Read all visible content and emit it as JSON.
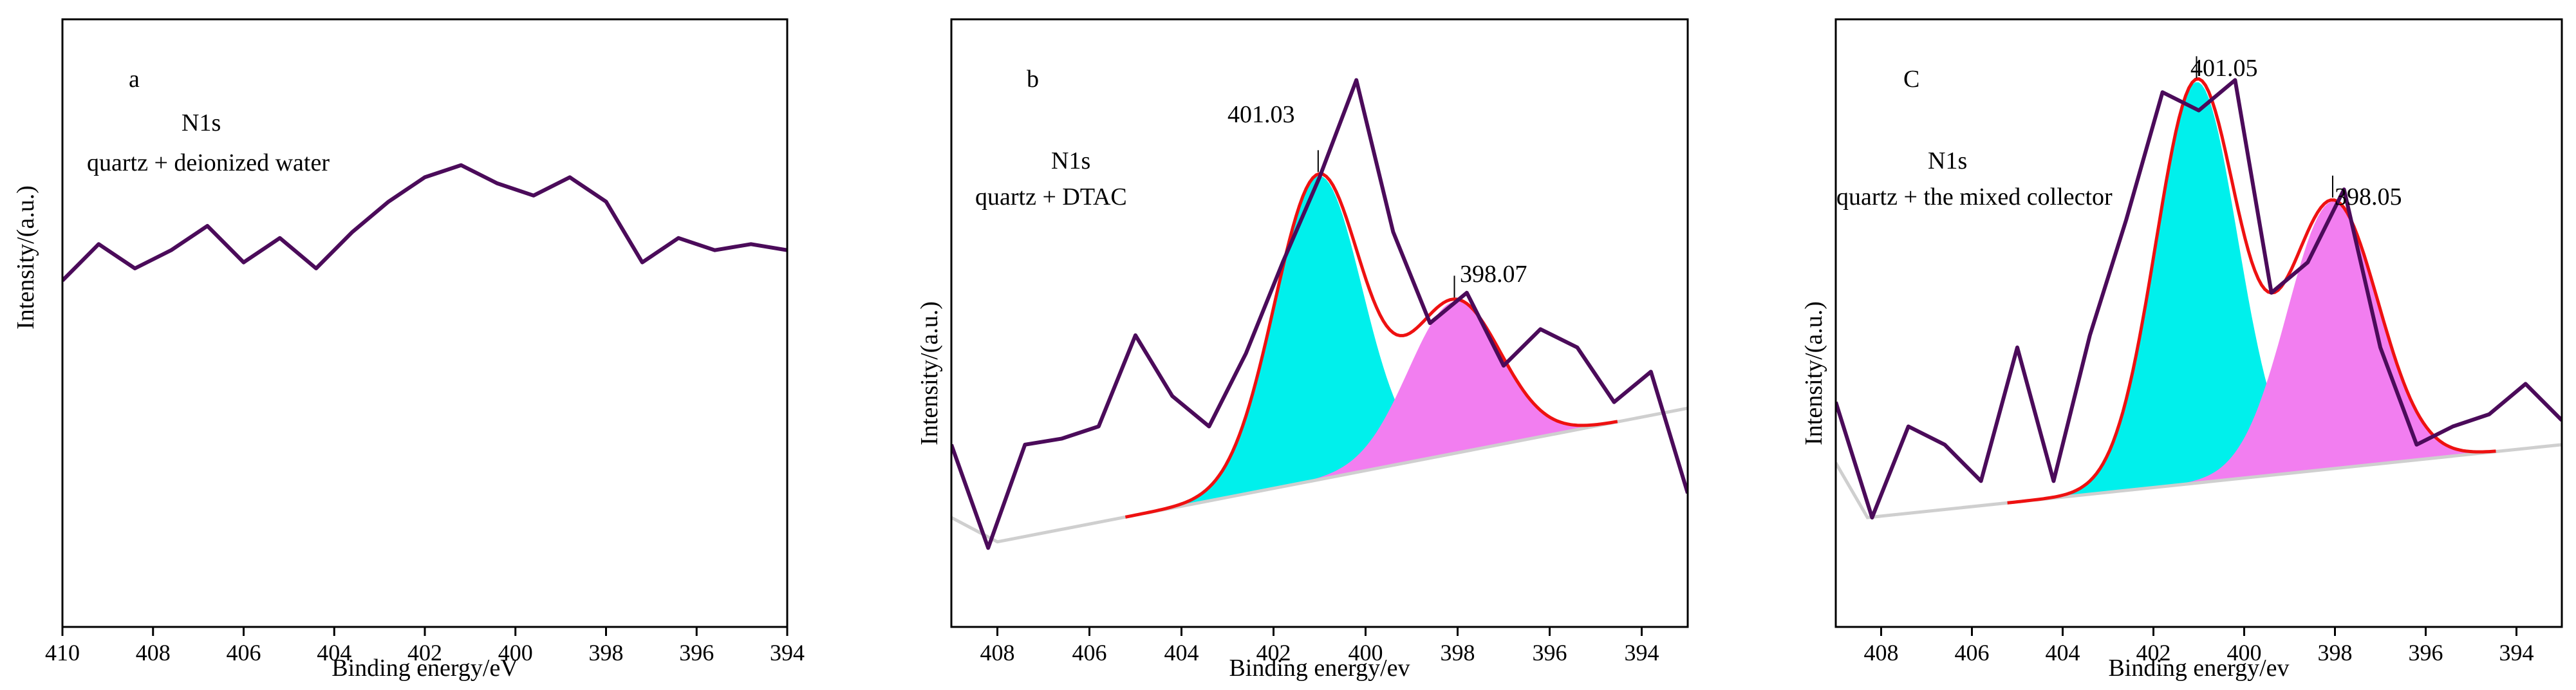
{
  "colors": {
    "spectrum": "#4b0b5a",
    "fit": "#ee1111",
    "baseline": "#cfcfcf",
    "peak_high": "#00f0ec",
    "peak_low": "#f27ef0"
  },
  "chart_data": [
    {
      "type": "line",
      "panel_label": "a",
      "annotations": [
        "N1s",
        "quartz + deionized water"
      ],
      "xlabel": "Binding energy/eV",
      "ylabel": "Intensity/(a.u.)",
      "xlim": [
        410,
        394
      ],
      "ylim": [
        0,
        1
      ],
      "xticks": [
        "410",
        "408",
        "406",
        "404",
        "402",
        "400",
        "398",
        "396",
        "394"
      ],
      "series": [
        {
          "name": "spectrum",
          "x": [
            410,
            409.2,
            408.4,
            407.6,
            406.8,
            406,
            405.2,
            404.4,
            403.6,
            402.8,
            402,
            401.2,
            400.4,
            399.6,
            398.8,
            398,
            397.2,
            396.4,
            395.6,
            394.8,
            394
          ],
          "y": [
            0.57,
            0.63,
            0.59,
            0.62,
            0.66,
            0.6,
            0.64,
            0.59,
            0.65,
            0.7,
            0.74,
            0.76,
            0.73,
            0.71,
            0.74,
            0.7,
            0.6,
            0.64,
            0.62,
            0.63,
            0.62
          ]
        }
      ]
    },
    {
      "type": "line",
      "panel_label": "b",
      "annotations": [
        "N1s",
        "quartz + DTAC"
      ],
      "peak_labels": [
        {
          "text": "401.03",
          "x": 401.03
        },
        {
          "text": "398.07",
          "x": 398.07
        }
      ],
      "xlabel": "Binding energy/ev",
      "ylabel": "Intensity/(a.u.)",
      "xlim": [
        409,
        393
      ],
      "ylim": [
        0,
        1
      ],
      "xticks": [
        "408",
        "406",
        "404",
        "402",
        "400",
        "398",
        "396",
        "394"
      ],
      "background": {
        "x": [
          409,
          408,
          393
        ],
        "y": [
          0.18,
          0.14,
          0.36
        ]
      },
      "peaks": [
        {
          "center": 401.03,
          "height": 0.5,
          "sigma": 0.95
        },
        {
          "center": 398.07,
          "height": 0.25,
          "sigma": 1.0
        }
      ],
      "series": [
        {
          "name": "spectrum",
          "x": [
            409,
            408.2,
            407.4,
            406.6,
            405.8,
            405,
            404.2,
            403.4,
            402.6,
            401.8,
            401,
            400.2,
            399.4,
            398.6,
            397.8,
            397,
            396.2,
            395.4,
            394.6,
            393.8,
            393
          ],
          "y": [
            0.3,
            0.13,
            0.3,
            0.31,
            0.33,
            0.48,
            0.38,
            0.33,
            0.45,
            0.6,
            0.74,
            0.9,
            0.65,
            0.5,
            0.55,
            0.43,
            0.49,
            0.46,
            0.37,
            0.42,
            0.22
          ]
        }
      ]
    },
    {
      "type": "line",
      "panel_label": "C",
      "annotations": [
        "N1s",
        "quartz + the mixed collector"
      ],
      "peak_labels": [
        {
          "text": "401.05",
          "x": 401.05
        },
        {
          "text": "398.05",
          "x": 398.05
        }
      ],
      "xlabel": "Binding energy/ev",
      "ylabel": "Intensity/(a.u.)",
      "xlim": [
        409,
        393
      ],
      "ylim": [
        0,
        1
      ],
      "xticks": [
        "408",
        "406",
        "404",
        "402",
        "400",
        "398",
        "396",
        "394"
      ],
      "background": {
        "x": [
          409,
          408.3,
          393
        ],
        "y": [
          0.27,
          0.18,
          0.3
        ]
      },
      "peaks": [
        {
          "center": 401.05,
          "height": 0.66,
          "sigma": 0.9
        },
        {
          "center": 398.05,
          "height": 0.44,
          "sigma": 1.0
        }
      ],
      "series": [
        {
          "name": "spectrum",
          "x": [
            409,
            408.2,
            407.4,
            406.6,
            405.8,
            405,
            404.2,
            403.4,
            402.6,
            401.8,
            401,
            400.2,
            399.4,
            398.6,
            397.8,
            397,
            396.2,
            395.4,
            394.6,
            393.8,
            393
          ],
          "y": [
            0.37,
            0.18,
            0.33,
            0.3,
            0.24,
            0.46,
            0.24,
            0.48,
            0.67,
            0.88,
            0.85,
            0.9,
            0.55,
            0.6,
            0.72,
            0.46,
            0.3,
            0.33,
            0.35,
            0.4,
            0.34
          ]
        }
      ]
    }
  ]
}
